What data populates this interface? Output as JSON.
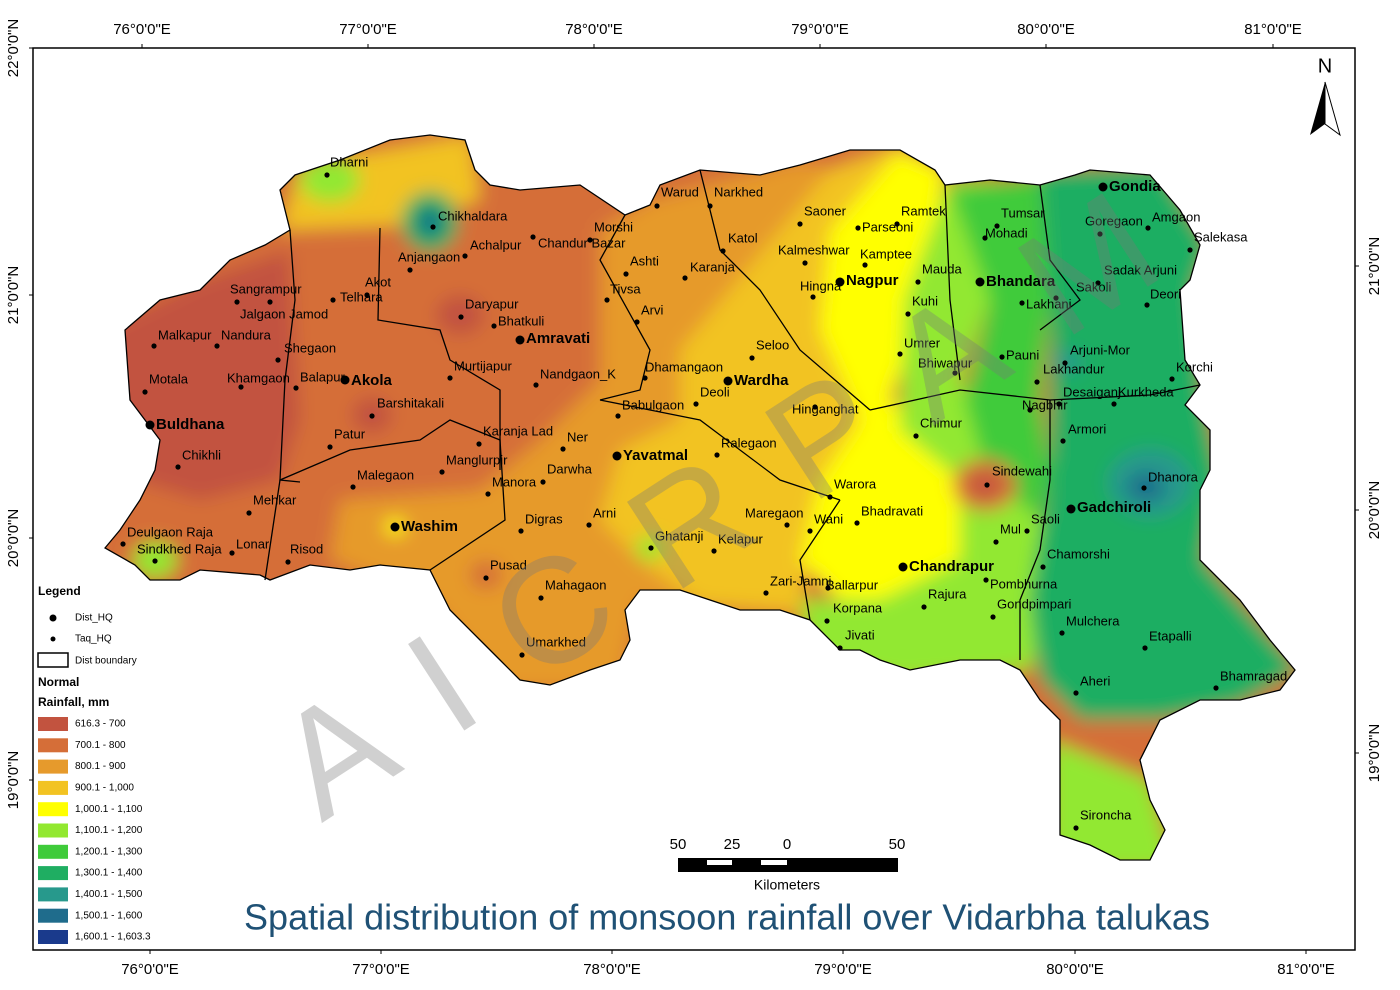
{
  "title": "Spatial distribution of monsoon rainfall over Vidarbha talukas",
  "watermark": "AICRPAM",
  "north": "N",
  "coordinates": {
    "top": [
      "76°0'0\"E",
      "77°0'0\"E",
      "78°0'0\"E",
      "79°0'0\"E",
      "80°0'0\"E",
      "81°0'0\"E"
    ],
    "bottom": [
      "76°0'0\"E",
      "77°0'0\"E",
      "78°0'0\"E",
      "79°0'0\"E",
      "80°0'0\"E",
      "81°0'0\"E"
    ],
    "left": [
      "22°0'0\"N",
      "21°0'0\"N",
      "20°0'0\"N",
      "19°0'0\"N"
    ],
    "right": [
      "21°0'0\"N",
      "20°0'0\"N",
      "19°0'0\"N"
    ]
  },
  "scale_bar": {
    "labels": [
      "50",
      "25",
      "0",
      "50"
    ],
    "unit": "Kilometers"
  },
  "legend": {
    "title": "Legend",
    "dist_hq": "Dist_HQ",
    "taq_hq": "Taq_HQ",
    "boundary": "Dist boundary",
    "subtitle": "Normal",
    "field": "Rainfall, mm",
    "classes": [
      {
        "label": "616.3 - 700",
        "color": "#c2533f"
      },
      {
        "label": "700.1 - 800",
        "color": "#d56e38"
      },
      {
        "label": "800.1 - 900",
        "color": "#e69a2c"
      },
      {
        "label": "900.1 - 1,000",
        "color": "#f2c322"
      },
      {
        "label": "1,000.1 - 1,100",
        "color": "#ffff00"
      },
      {
        "label": "1,100.1 - 1,200",
        "color": "#92e830"
      },
      {
        "label": "1,200.1 - 1,300",
        "color": "#3fcb3a"
      },
      {
        "label": "1,300.1 - 1,400",
        "color": "#1fae62"
      },
      {
        "label": "1,400.1 - 1,500",
        "color": "#27998c"
      },
      {
        "label": "1,500.1 - 1,600",
        "color": "#1f6c8c"
      },
      {
        "label": "1,600.1 - 1,603.3",
        "color": "#1a3a8c"
      }
    ]
  },
  "places": {
    "district_hq": [
      "Buldhana",
      "Akola",
      "Washim",
      "Amravati",
      "Yavatmal",
      "Wardha",
      "Nagpur",
      "Bhandara",
      "Gondia",
      "Chandrapur",
      "Gadchiroli"
    ],
    "taluk": [
      "Dharni",
      "Chikhaldara",
      "Achalpur",
      "Anjangaon",
      "Chandur Bazar",
      "Morshi",
      "Warud",
      "Narkhed",
      "Saoner",
      "Ramtek",
      "Parseoni",
      "Katol",
      "Kalmeshwar",
      "Kamptee",
      "Ashti",
      "Karanja",
      "Tumsar",
      "Mohadi",
      "Goregaon",
      "Amgaon",
      "Salekasa",
      "Sangrampur",
      "Telhara",
      "Akot",
      "Jalgaon Jamod",
      "Daryapur",
      "Bhatkuli",
      "Tivsa",
      "Arvi",
      "Hingna",
      "Mauda",
      "Kuhi",
      "Sakoli",
      "Sadak Arjuni",
      "Lakhani",
      "Deori",
      "Malkapur",
      "Nandura",
      "Shegaon",
      "Umrer",
      "Pauni",
      "Bhiwapur",
      "Arjuni-Mor",
      "Lakhandur",
      "Korchi",
      "Motala",
      "Khamgaon",
      "Balapur",
      "Murtijapur",
      "Nandgaon_K",
      "Dhamangaon",
      "Seloo",
      "Deoli",
      "Babulgaon",
      "Hinganghat",
      "Barshitakali",
      "Desaiganj",
      "Kurkheda",
      "Nagbhir",
      "Chimur",
      "Armori",
      "Patur",
      "Karanja Lad",
      "Ner",
      "Ralegaon",
      "Chikhli",
      "Manglurpir",
      "Darwha",
      "Malegaon",
      "Manora",
      "Warora",
      "Sindewahi",
      "Dhanora",
      "Mehkar",
      "Digras",
      "Arni",
      "Bhadravati",
      "Maregaon",
      "Wani",
      "Saoli",
      "Mul",
      "Deulgaon Raja",
      "Ghatanji",
      "Kelapur",
      "Chamorshi",
      "Sindkhed Raja",
      "Lonar",
      "Risod",
      "Pusad",
      "Pombhurna",
      "Ballarpur",
      "Rajura",
      "Mahagaon",
      "Zari-Jamni",
      "Gondpimpari",
      "Korpana",
      "Mulchera",
      "Etapalli",
      "Umarkhed",
      "Jivati",
      "Aheri",
      "Bhamragad",
      "Sironcha"
    ]
  }
}
